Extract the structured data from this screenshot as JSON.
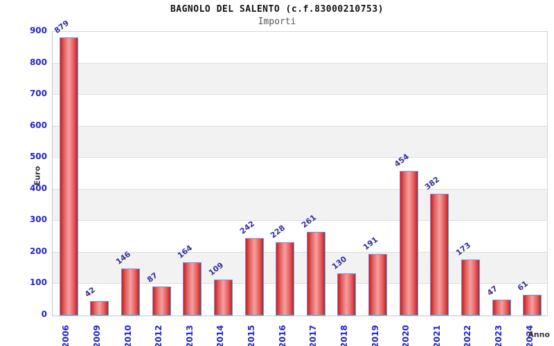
{
  "title": "BAGNOLO DEL SALENTO (c.f.83000210753)",
  "subtitle": "Importi",
  "chart_data": {
    "type": "bar",
    "categories": [
      "2006",
      "2009",
      "2010",
      "2012",
      "2013",
      "2014",
      "2015",
      "2016",
      "2017",
      "2018",
      "2019",
      "2020",
      "2021",
      "2022",
      "2023",
      "2024"
    ],
    "values": [
      879,
      42,
      146,
      87,
      164,
      109,
      242,
      228,
      261,
      130,
      191,
      454,
      382,
      173,
      47,
      61
    ],
    "title": "BAGNOLO DEL SALENTO (c.f.83000210753)",
    "subtitle": "Importi",
    "xlabel": "Anno",
    "ylabel": "Euro",
    "ylim": [
      0,
      900
    ],
    "yticks": [
      0,
      100,
      200,
      300,
      400,
      500,
      600,
      700,
      800,
      900
    ],
    "grid": "horizontal gridlines with alternating gray bands",
    "legend": "none",
    "colors": {
      "bar_fill_edge": "#c71e1e",
      "bar_fill_highlight": "#f5a0a0",
      "bar_border": "#5aa0e8",
      "tick_label": "#2424cc",
      "value_label": "#30309c",
      "band_gray": "#f2f2f2",
      "gridline": "#dcdcdc",
      "title_color": "#111111",
      "subtitle_color": "#555555",
      "axis_title_color": "#333333"
    }
  }
}
